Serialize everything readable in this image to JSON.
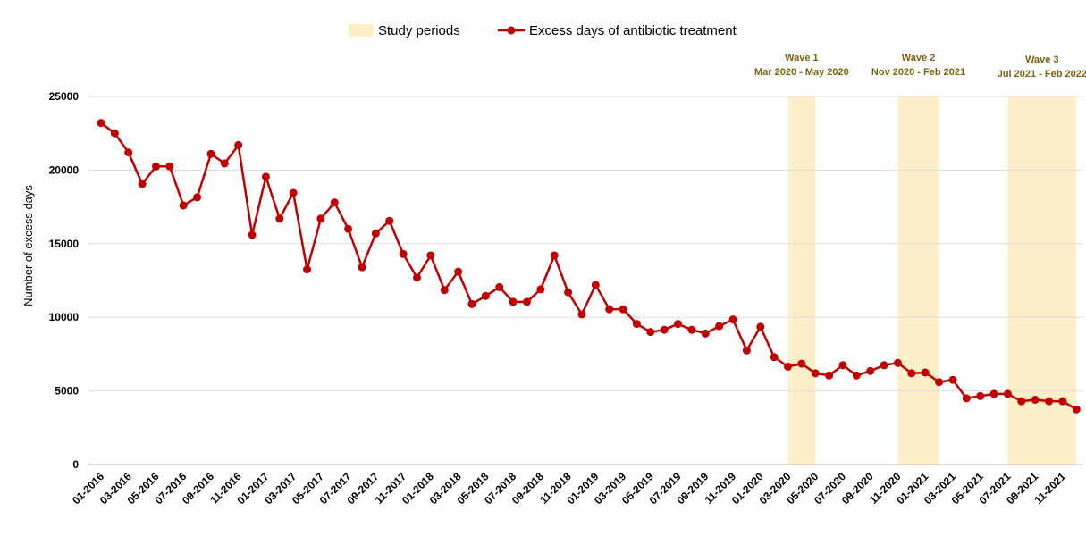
{
  "chart_data": {
    "type": "line",
    "y_label": "Number of excess days",
    "categories": [
      "01-2016",
      null,
      "03-2016",
      null,
      "05-2016",
      null,
      "07-2016",
      null,
      "09-2016",
      null,
      "11-2016",
      null,
      "01-2017",
      null,
      "03-2017",
      null,
      "05-2017",
      null,
      "07-2017",
      null,
      "09-2017",
      null,
      "11-2017",
      null,
      "01-2018",
      null,
      "03-2018",
      null,
      "05-2018",
      null,
      "07-2018",
      null,
      "09-2018",
      null,
      "11-2018",
      null,
      "01-2019",
      null,
      "03-2019",
      null,
      "05-2019",
      null,
      "07-2019",
      null,
      "09-2019",
      null,
      "11-2019",
      null,
      "01-2020",
      null,
      "03-2020",
      null,
      "05-2020",
      null,
      "07-2020",
      null,
      "09-2020",
      null,
      "11-2020",
      null,
      "01-2021",
      null,
      "03-2021",
      null,
      "05-2021",
      null,
      "07-2021",
      null,
      "09-2021",
      null,
      "11-2021",
      null
    ],
    "series": [
      {
        "name": "Excess days of antibiotic treatment",
        "color": "#c00000",
        "values": [
          23200,
          22500,
          21200,
          19050,
          20250,
          20250,
          17600,
          18150,
          21100,
          20450,
          21700,
          15600,
          19550,
          16700,
          18450,
          13250,
          16700,
          17800,
          16000,
          13400,
          15700,
          16550,
          14300,
          12700,
          14200,
          11850,
          13100,
          10900,
          11450,
          12050,
          11050,
          11050,
          11900,
          14200,
          11700,
          10200,
          12200,
          10550,
          10550,
          9550,
          9000,
          9150,
          9550,
          9150,
          8900,
          9400,
          9850,
          7750,
          9350,
          7300,
          6650,
          6850,
          6200,
          6050,
          6750,
          6050,
          6350,
          6750,
          6900,
          6200,
          6250,
          5600,
          5750,
          4500,
          4650,
          4800,
          4800,
          4300,
          4400,
          4300,
          4300,
          3750
        ]
      }
    ],
    "bands": {
      "name": "Study periods",
      "color": "#fdf0c8",
      "items": [
        {
          "title": "Wave 1",
          "period": "Mar 2020 - May 2020"
        },
        {
          "title": "Wave 2",
          "period": "Nov 2020 - Feb 2021"
        },
        {
          "title": "Wave 3",
          "period": "Jul 2021 - Feb 2022"
        }
      ]
    },
    "ylim": [
      0,
      25000
    ],
    "yticks": [
      0,
      5000,
      10000,
      15000,
      20000,
      25000
    ],
    "grid": true
  }
}
